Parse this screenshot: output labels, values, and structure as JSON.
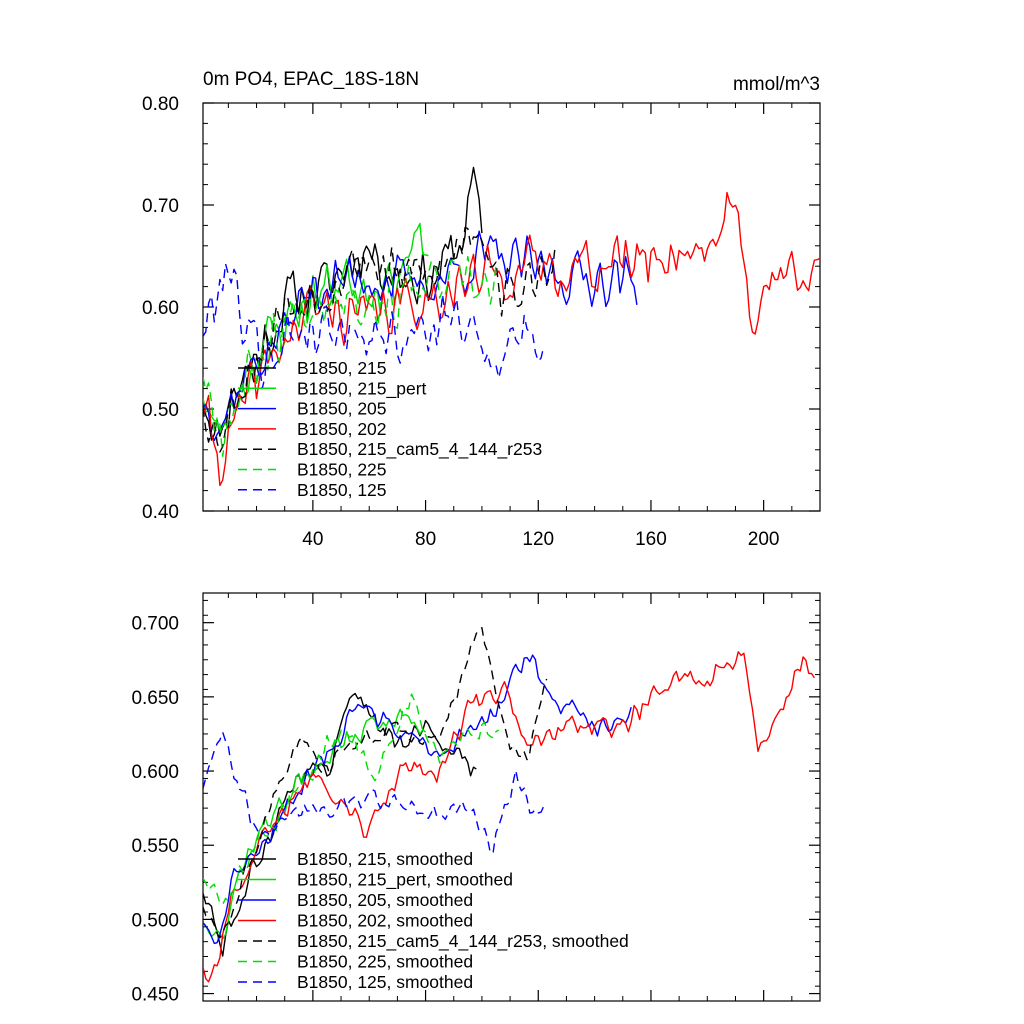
{
  "figure": {
    "title_left": "0m PO4, EPAC_18S-18N",
    "title_right": "mmol/m^3"
  },
  "chart_data": [
    {
      "type": "line",
      "xlim": [
        1,
        220
      ],
      "ylim": [
        0.4,
        0.8
      ],
      "xticks": [
        40,
        80,
        120,
        160,
        200
      ],
      "xtick_labels": [
        "40",
        "80",
        "120",
        "160",
        "200"
      ],
      "yticks": [
        0.4,
        0.5,
        0.6,
        0.7,
        0.8
      ],
      "ytick_labels": [
        "0.40",
        "0.50",
        "0.60",
        "0.70",
        "0.80"
      ],
      "legend_position": "lower-left",
      "series": [
        {
          "name": "B1850, 215",
          "color": "#000000",
          "dash": "solid",
          "length": 100,
          "noise": 0.034,
          "seed": 11,
          "anchors": [
            [
              1,
              0.52
            ],
            [
              6,
              0.47
            ],
            [
              12,
              0.52
            ],
            [
              22,
              0.56
            ],
            [
              32,
              0.61
            ],
            [
              45,
              0.62
            ],
            [
              58,
              0.66
            ],
            [
              70,
              0.63
            ],
            [
              82,
              0.63
            ],
            [
              92,
              0.66
            ],
            [
              97,
              0.72
            ],
            [
              100,
              0.67
            ]
          ]
        },
        {
          "name": "B1850, 215_pert",
          "color": "#00dd00",
          "dash": "solid",
          "length": 81,
          "noise": 0.034,
          "seed": 23,
          "anchors": [
            [
              1,
              0.52
            ],
            [
              6,
              0.47
            ],
            [
              12,
              0.51
            ],
            [
              22,
              0.56
            ],
            [
              35,
              0.6
            ],
            [
              50,
              0.63
            ],
            [
              65,
              0.62
            ],
            [
              78,
              0.66
            ],
            [
              81,
              0.64
            ]
          ]
        },
        {
          "name": "B1850, 205",
          "color": "#0000ff",
          "dash": "solid",
          "length": 155,
          "noise": 0.032,
          "seed": 37,
          "anchors": [
            [
              1,
              0.51
            ],
            [
              8,
              0.49
            ],
            [
              15,
              0.53
            ],
            [
              25,
              0.56
            ],
            [
              40,
              0.62
            ],
            [
              60,
              0.63
            ],
            [
              80,
              0.62
            ],
            [
              100,
              0.65
            ],
            [
              115,
              0.64
            ],
            [
              130,
              0.63
            ],
            [
              145,
              0.63
            ],
            [
              155,
              0.62
            ]
          ]
        },
        {
          "name": "B1850, 202",
          "color": "#ff0000",
          "dash": "solid",
          "length": 220,
          "noise": 0.034,
          "seed": 41,
          "anchors": [
            [
              1,
              0.5
            ],
            [
              7,
              0.45
            ],
            [
              15,
              0.5
            ],
            [
              25,
              0.55
            ],
            [
              40,
              0.6
            ],
            [
              60,
              0.59
            ],
            [
              80,
              0.61
            ],
            [
              100,
              0.63
            ],
            [
              120,
              0.64
            ],
            [
              140,
              0.64
            ],
            [
              160,
              0.65
            ],
            [
              180,
              0.66
            ],
            [
              190,
              0.7
            ],
            [
              196,
              0.59
            ],
            [
              205,
              0.63
            ],
            [
              220,
              0.65
            ]
          ]
        },
        {
          "name": "B1850, 215_cam5_4_144_r253",
          "color": "#000000",
          "dash": "dashed",
          "length": 126,
          "noise": 0.033,
          "seed": 53,
          "anchors": [
            [
              1,
              0.51
            ],
            [
              6,
              0.47
            ],
            [
              15,
              0.53
            ],
            [
              30,
              0.6
            ],
            [
              45,
              0.62
            ],
            [
              58,
              0.65
            ],
            [
              70,
              0.63
            ],
            [
              85,
              0.63
            ],
            [
              95,
              0.68
            ],
            [
              100,
              0.68
            ],
            [
              108,
              0.61
            ],
            [
              118,
              0.62
            ],
            [
              126,
              0.66
            ]
          ]
        },
        {
          "name": "B1850, 225",
          "color": "#00dd00",
          "dash": "dashed",
          "length": 105,
          "noise": 0.034,
          "seed": 67,
          "anchors": [
            [
              1,
              0.54
            ],
            [
              8,
              0.48
            ],
            [
              18,
              0.54
            ],
            [
              35,
              0.6
            ],
            [
              50,
              0.62
            ],
            [
              62,
              0.6
            ],
            [
              80,
              0.62
            ],
            [
              95,
              0.62
            ],
            [
              105,
              0.62
            ]
          ]
        },
        {
          "name": "B1850, 125",
          "color": "#0000ff",
          "dash": "dashed",
          "length": 122,
          "noise": 0.034,
          "seed": 79,
          "anchors": [
            [
              1,
              0.58
            ],
            [
              5,
              0.6
            ],
            [
              9,
              0.65
            ],
            [
              14,
              0.6
            ],
            [
              22,
              0.55
            ],
            [
              35,
              0.58
            ],
            [
              55,
              0.58
            ],
            [
              75,
              0.57
            ],
            [
              90,
              0.59
            ],
            [
              105,
              0.55
            ],
            [
              115,
              0.58
            ],
            [
              122,
              0.56
            ]
          ]
        }
      ]
    },
    {
      "type": "line",
      "xlim": [
        1,
        220
      ],
      "ylim": [
        0.445,
        0.72
      ],
      "xticks": [
        40,
        80,
        120,
        160,
        200
      ],
      "xtick_labels": [],
      "yticks": [
        0.45,
        0.5,
        0.55,
        0.6,
        0.65,
        0.7
      ],
      "ytick_labels": [
        "0.450",
        "0.500",
        "0.550",
        "0.600",
        "0.650",
        "0.700"
      ],
      "legend_position": "lower-left",
      "series": [
        {
          "name": "B1850, 215, smoothed",
          "color": "#000000",
          "dash": "solid",
          "length": 98,
          "noise": 0.01,
          "seed": 111,
          "anchors": [
            [
              1,
              0.52
            ],
            [
              8,
              0.48
            ],
            [
              20,
              0.54
            ],
            [
              35,
              0.6
            ],
            [
              45,
              0.6
            ],
            [
              55,
              0.66
            ],
            [
              62,
              0.63
            ],
            [
              72,
              0.62
            ],
            [
              82,
              0.63
            ],
            [
              90,
              0.61
            ],
            [
              98,
              0.6
            ]
          ]
        },
        {
          "name": "B1850, 215_pert, smoothed",
          "color": "#00dd00",
          "dash": "solid",
          "length": 80,
          "noise": 0.01,
          "seed": 123,
          "anchors": [
            [
              1,
              0.5
            ],
            [
              8,
              0.49
            ],
            [
              18,
              0.55
            ],
            [
              30,
              0.58
            ],
            [
              45,
              0.61
            ],
            [
              60,
              0.63
            ],
            [
              75,
              0.64
            ],
            [
              80,
              0.62
            ]
          ]
        },
        {
          "name": "B1850, 205, smoothed",
          "color": "#0000ff",
          "dash": "solid",
          "length": 153,
          "noise": 0.009,
          "seed": 137,
          "anchors": [
            [
              1,
              0.5
            ],
            [
              5,
              0.48
            ],
            [
              12,
              0.53
            ],
            [
              25,
              0.56
            ],
            [
              40,
              0.6
            ],
            [
              55,
              0.64
            ],
            [
              70,
              0.63
            ],
            [
              85,
              0.61
            ],
            [
              105,
              0.64
            ],
            [
              117,
              0.68
            ],
            [
              125,
              0.65
            ],
            [
              140,
              0.63
            ],
            [
              153,
              0.64
            ]
          ]
        },
        {
          "name": "B1850, 202, smoothed",
          "color": "#ff0000",
          "dash": "solid",
          "length": 218,
          "noise": 0.01,
          "seed": 141,
          "anchors": [
            [
              1,
              0.47
            ],
            [
              4,
              0.46
            ],
            [
              12,
              0.52
            ],
            [
              25,
              0.56
            ],
            [
              40,
              0.6
            ],
            [
              52,
              0.58
            ],
            [
              58,
              0.56
            ],
            [
              64,
              0.58
            ],
            [
              72,
              0.6
            ],
            [
              85,
              0.6
            ],
            [
              95,
              0.64
            ],
            [
              108,
              0.66
            ],
            [
              115,
              0.62
            ],
            [
              130,
              0.63
            ],
            [
              150,
              0.63
            ],
            [
              165,
              0.66
            ],
            [
              180,
              0.66
            ],
            [
              193,
              0.68
            ],
            [
              198,
              0.61
            ],
            [
              207,
              0.64
            ],
            [
              214,
              0.68
            ],
            [
              218,
              0.66
            ]
          ]
        },
        {
          "name": "B1850, 215_cam5_4_144_r253, smoothed",
          "color": "#000000",
          "dash": "dashed",
          "length": 123,
          "noise": 0.008,
          "seed": 153,
          "anchors": [
            [
              1,
              0.51
            ],
            [
              8,
              0.49
            ],
            [
              20,
              0.55
            ],
            [
              35,
              0.62
            ],
            [
              45,
              0.6
            ],
            [
              55,
              0.62
            ],
            [
              70,
              0.63
            ],
            [
              85,
              0.62
            ],
            [
              92,
              0.66
            ],
            [
              100,
              0.7
            ],
            [
              105,
              0.65
            ],
            [
              110,
              0.62
            ],
            [
              116,
              0.61
            ],
            [
              123,
              0.66
            ]
          ]
        },
        {
          "name": "B1850, 225, smoothed",
          "color": "#00dd00",
          "dash": "dashed",
          "length": 106,
          "noise": 0.01,
          "seed": 167,
          "anchors": [
            [
              1,
              0.53
            ],
            [
              8,
              0.51
            ],
            [
              20,
              0.55
            ],
            [
              35,
              0.59
            ],
            [
              50,
              0.63
            ],
            [
              62,
              0.6
            ],
            [
              75,
              0.65
            ],
            [
              85,
              0.61
            ],
            [
              95,
              0.63
            ],
            [
              106,
              0.63
            ]
          ]
        },
        {
          "name": "B1850, 125, smoothed",
          "color": "#0000ff",
          "dash": "dashed",
          "length": 122,
          "noise": 0.008,
          "seed": 179,
          "anchors": [
            [
              1,
              0.59
            ],
            [
              4,
              0.61
            ],
            [
              8,
              0.625
            ],
            [
              12,
              0.6
            ],
            [
              20,
              0.56
            ],
            [
              35,
              0.57
            ],
            [
              55,
              0.58
            ],
            [
              70,
              0.58
            ],
            [
              85,
              0.57
            ],
            [
              95,
              0.58
            ],
            [
              104,
              0.545
            ],
            [
              112,
              0.6
            ],
            [
              118,
              0.57
            ],
            [
              122,
              0.58
            ]
          ]
        }
      ]
    }
  ]
}
